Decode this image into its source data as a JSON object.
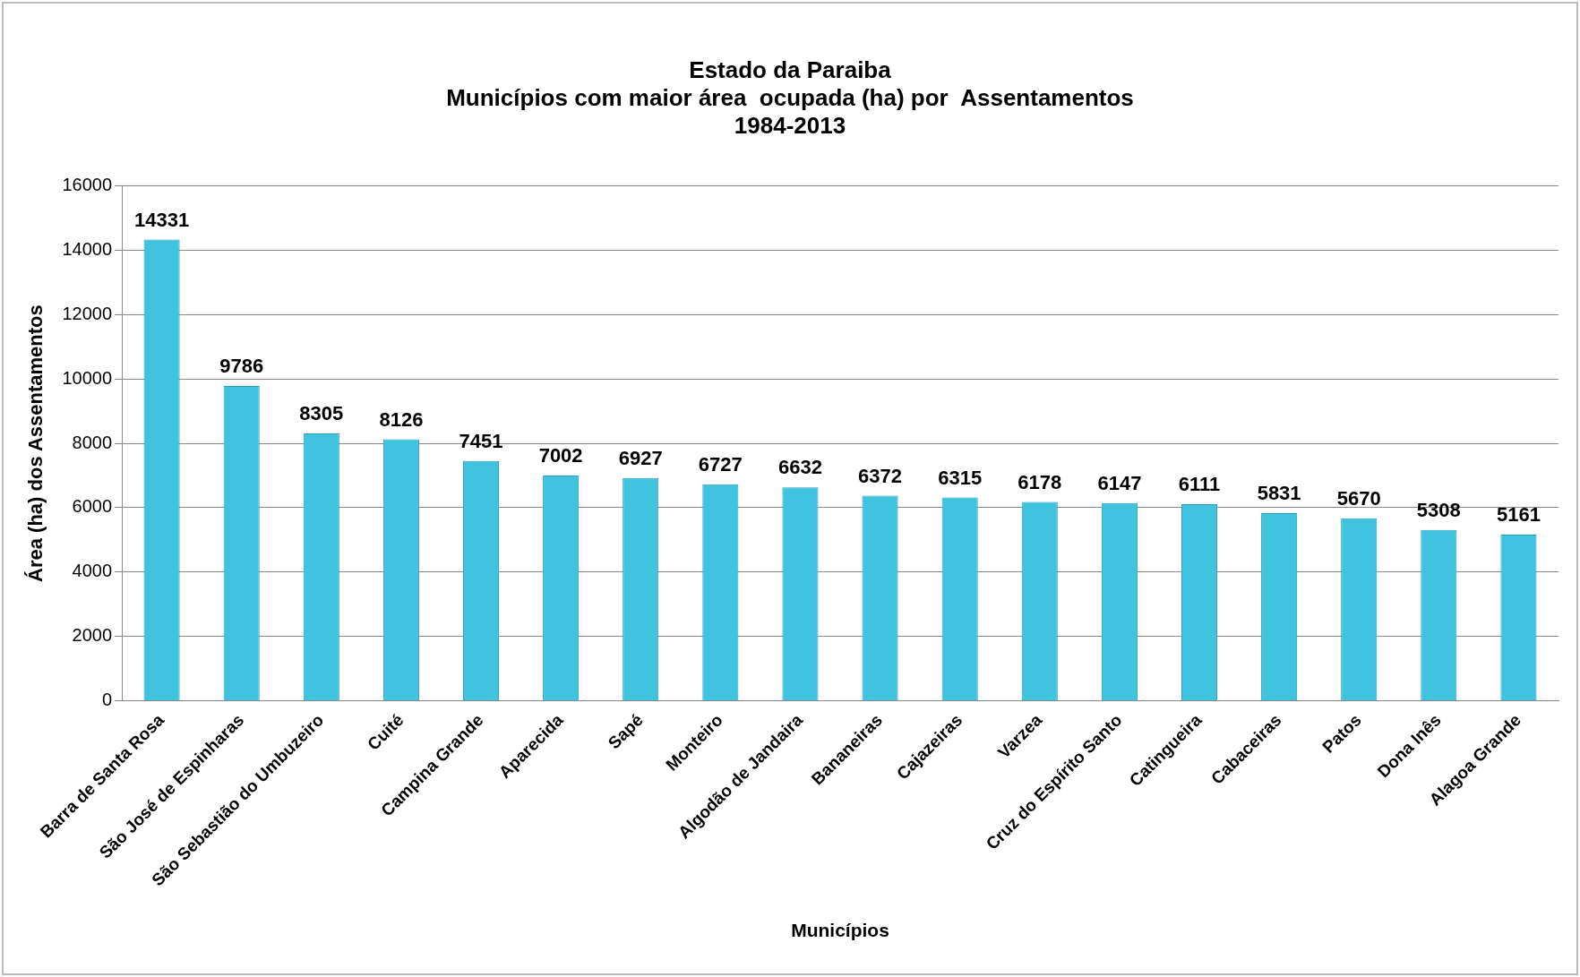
{
  "chart_data": {
    "type": "bar",
    "title": "Estado da Paraiba\nMunicípios com maior área  ocupada (ha) por  Assentamentos\n1984-2013",
    "xlabel": "Municípios",
    "ylabel": "Área (ha) dos Assentamentos",
    "categories": [
      "Barra de Santa Rosa",
      "São José de Espinharas",
      "São Sebastião do Umbuzeiro",
      "Cuité",
      "Campina Grande",
      "Aparecida",
      "Sapé",
      "Monteiro",
      "Algodão de Jandaira",
      "Bananeiras",
      "Cajazeiras",
      "Varzea",
      "Cruz do Espírito Santo",
      "Catingueira",
      "Cabaceiras",
      "Patos",
      "Dona Inês",
      "Alagoa Grande"
    ],
    "values": [
      14331,
      9786,
      8305,
      8126,
      7451,
      7002,
      6927,
      6727,
      6632,
      6372,
      6315,
      6178,
      6147,
      6111,
      5831,
      5670,
      5308,
      5161
    ],
    "color": "#3fc3df",
    "ylim": [
      0,
      16000
    ],
    "yticks": [
      0,
      2000,
      4000,
      6000,
      8000,
      10000,
      12000,
      14000,
      16000
    ],
    "grid": "y",
    "data_labels": true
  }
}
